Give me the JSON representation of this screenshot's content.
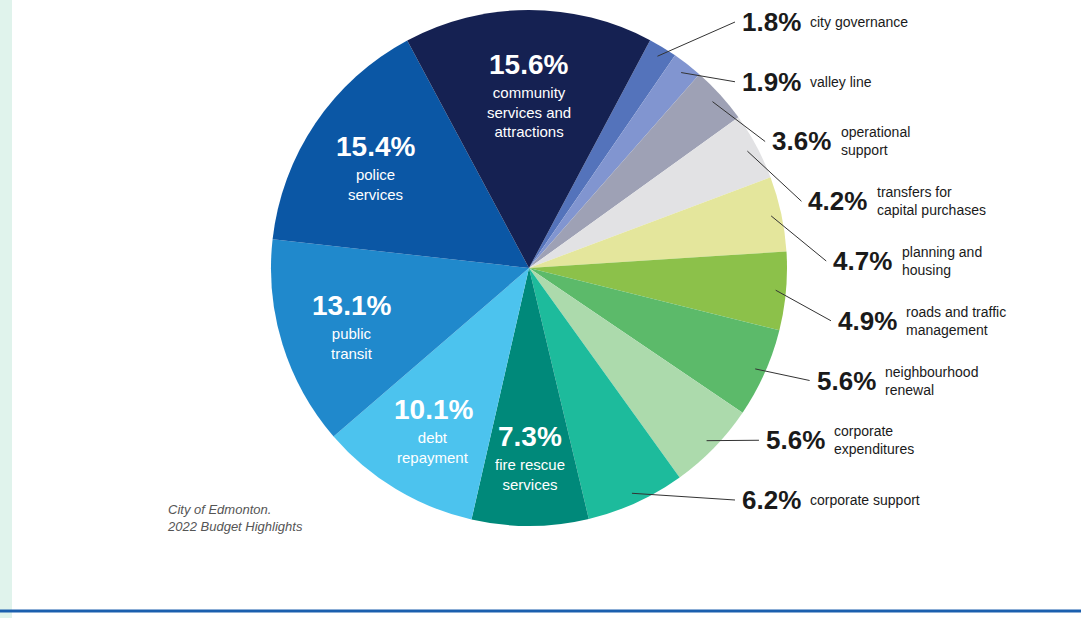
{
  "chart_data": {
    "type": "pie",
    "categories": [
      "city governance",
      "valley line",
      "operational support",
      "transfers for capital purchases",
      "planning and housing",
      "roads and traffic management",
      "neighbourhood renewal",
      "corporate expenditures",
      "corporate support",
      "fire rescue services",
      "debt repayment",
      "public transit",
      "police services",
      "community services and attractions"
    ],
    "values": [
      1.8,
      1.9,
      3.6,
      4.2,
      4.7,
      4.9,
      5.6,
      5.6,
      6.2,
      7.3,
      10.1,
      13.1,
      15.4,
      15.6
    ],
    "value_labels": [
      "1.8%",
      "1.9%",
      "3.6%",
      "4.2%",
      "4.7%",
      "4.9%",
      "5.6%",
      "5.6%",
      "6.2%",
      "7.3%",
      "10.1%",
      "13.1%",
      "15.4%",
      "15.6%"
    ],
    "colors": [
      "#5473bb",
      "#8195d0",
      "#9ea1b5",
      "#e2e2e4",
      "#e4e69c",
      "#8cc14a",
      "#5cba6a",
      "#acdaac",
      "#1dbb9c",
      "#00897a",
      "#4cc3ee",
      "#2089cc",
      "#0b57a5",
      "#152152"
    ],
    "data_labels": true,
    "annotations": [
      "City of Edmonton. 2022 Budget Highlights"
    ]
  }
}
